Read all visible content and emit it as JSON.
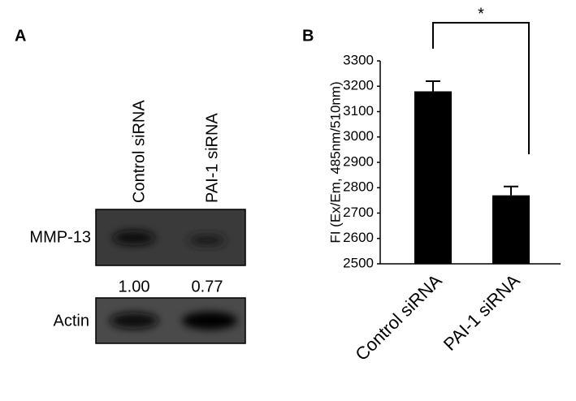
{
  "panel_a": {
    "label": "A",
    "lanes": [
      "Control siRNA",
      "PAI-1 siRNA"
    ],
    "rows": [
      {
        "label": "MMP-13"
      },
      {
        "label": "Actin"
      }
    ],
    "ratios": [
      "1.00",
      "0.77"
    ]
  },
  "chart_data": {
    "type": "bar",
    "panel_label": "B",
    "y_label": "FI (Ex/Em, 485nm/510nm)",
    "categories": [
      "Control siRNA",
      "PAI-1 siRNA"
    ],
    "values": [
      3180,
      2770
    ],
    "errors": [
      40,
      35
    ],
    "color": "#000000",
    "ylim": [
      2500,
      3300
    ],
    "yticks": [
      2500,
      2600,
      2700,
      2800,
      2900,
      3000,
      3100,
      3200,
      3300
    ],
    "annotation": "*"
  }
}
